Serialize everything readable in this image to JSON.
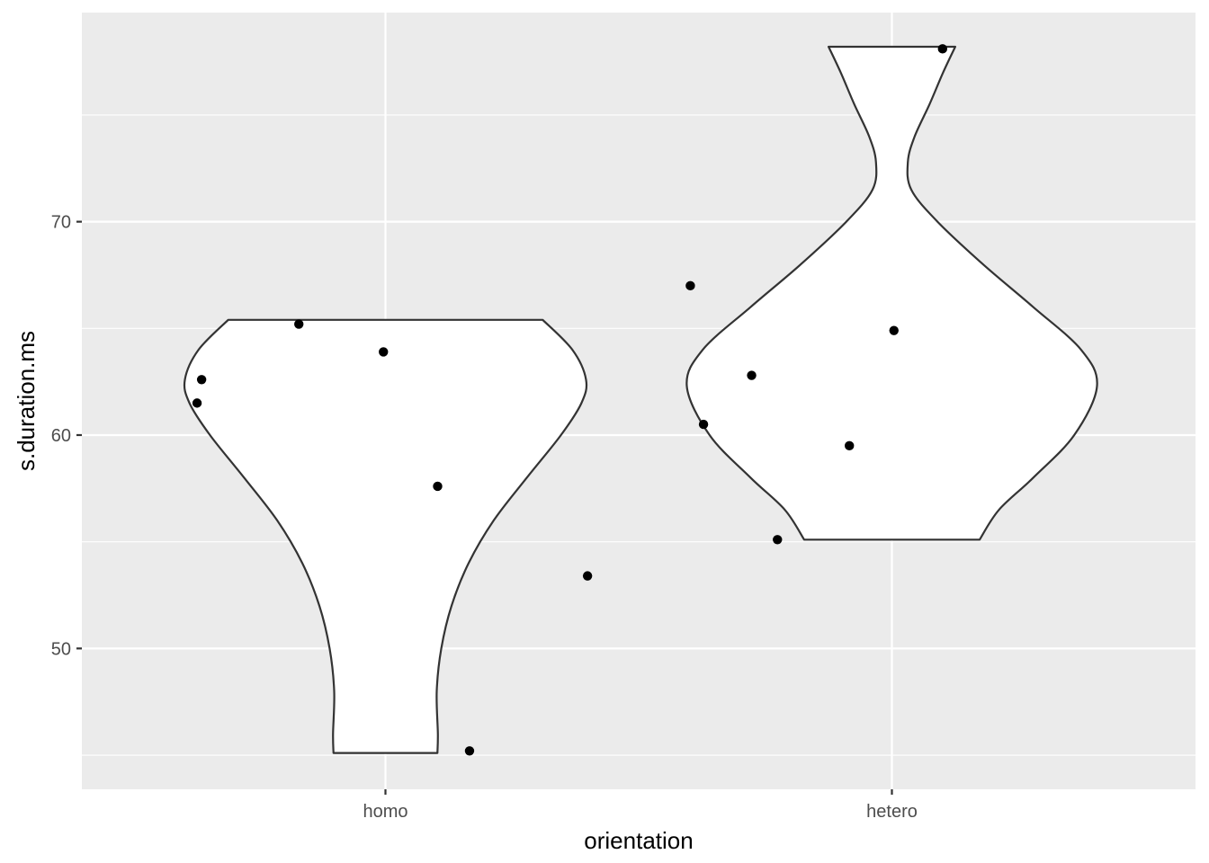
{
  "chart_data": {
    "type": "violin",
    "title": "",
    "xlabel": "orientation",
    "ylabel": "s.duration.ms",
    "categories": [
      "homo",
      "hetero"
    ],
    "ylim": [
      43.4,
      79.8
    ],
    "yticks": [
      50,
      60,
      70
    ],
    "yticks_minor": [
      45,
      55,
      65,
      75
    ],
    "grid": true,
    "panel_background": "#ebebeb",
    "grid_color": "#ffffff",
    "violin_fill": "#ffffff",
    "violin_stroke": "#333333",
    "point_color": "#000000",
    "series": [
      {
        "category": "homo",
        "range": [
          45.1,
          65.4
        ],
        "density_profile": [
          {
            "y": 45.1,
            "w": 0.228
          },
          {
            "y": 46.0,
            "w": 0.23
          },
          {
            "y": 48.0,
            "w": 0.225
          },
          {
            "y": 50.0,
            "w": 0.245
          },
          {
            "y": 52.0,
            "w": 0.29
          },
          {
            "y": 54.0,
            "w": 0.365
          },
          {
            "y": 56.0,
            "w": 0.475
          },
          {
            "y": 58.0,
            "w": 0.62
          },
          {
            "y": 60.0,
            "w": 0.77
          },
          {
            "y": 61.5,
            "w": 0.86
          },
          {
            "y": 62.6,
            "w": 0.88
          },
          {
            "y": 64.0,
            "w": 0.82
          },
          {
            "y": 65.4,
            "w": 0.69
          }
        ],
        "points": [
          {
            "x_offset": -0.372,
            "y": 61.5
          },
          {
            "x_offset": -0.363,
            "y": 62.6
          },
          {
            "x_offset": -0.171,
            "y": 65.2
          },
          {
            "x_offset": -0.004,
            "y": 63.9
          },
          {
            "x_offset": 0.103,
            "y": 57.6
          },
          {
            "x_offset": 0.399,
            "y": 53.4
          },
          {
            "x_offset": 0.166,
            "y": 45.2
          }
        ]
      },
      {
        "category": "hetero",
        "range": [
          55.1,
          78.2
        ],
        "density_profile": [
          {
            "y": 55.1,
            "w": 0.385
          },
          {
            "y": 56.5,
            "w": 0.47
          },
          {
            "y": 58.0,
            "w": 0.62
          },
          {
            "y": 60.0,
            "w": 0.8
          },
          {
            "y": 62.3,
            "w": 0.9
          },
          {
            "y": 64.0,
            "w": 0.83
          },
          {
            "y": 66.0,
            "w": 0.62
          },
          {
            "y": 68.0,
            "w": 0.4
          },
          {
            "y": 70.0,
            "w": 0.2
          },
          {
            "y": 71.5,
            "w": 0.085
          },
          {
            "y": 72.8,
            "w": 0.07
          },
          {
            "y": 74.0,
            "w": 0.1
          },
          {
            "y": 75.5,
            "w": 0.165
          },
          {
            "y": 77.0,
            "w": 0.225
          },
          {
            "y": 78.2,
            "w": 0.278
          }
        ],
        "points": [
          {
            "x_offset": -0.398,
            "y": 67.0
          },
          {
            "x_offset": -0.372,
            "y": 60.5
          },
          {
            "x_offset": -0.277,
            "y": 62.8
          },
          {
            "x_offset": -0.226,
            "y": 55.1
          },
          {
            "x_offset": 0.004,
            "y": 64.9
          },
          {
            "x_offset": -0.084,
            "y": 59.5
          },
          {
            "x_offset": 0.1,
            "y": 78.1
          }
        ]
      }
    ]
  }
}
